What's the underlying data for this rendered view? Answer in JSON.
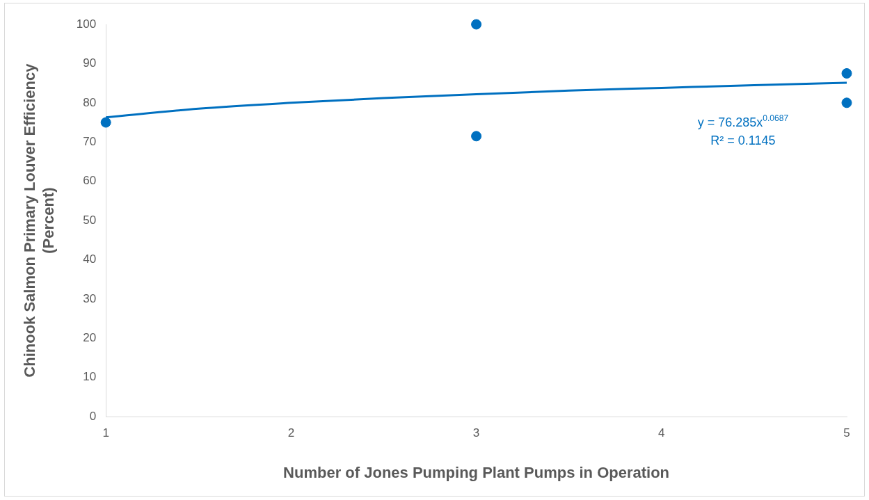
{
  "chart_data": {
    "type": "scatter",
    "xlabel": "Number of Jones Pumping Plant Pumps in Operation",
    "ylabel": "Chinook Salmon Primary Louver Efficiency (Percent)",
    "series": [
      {
        "type": "scatter",
        "color": "#0070c0",
        "x": [
          1,
          3,
          3,
          5,
          5
        ],
        "values": [
          75,
          100,
          71.5,
          87.5,
          80
        ]
      },
      {
        "type": "line",
        "color": "#0070c0",
        "marker": "none",
        "x": [
          1,
          1.5,
          2,
          2.5,
          3,
          3.5,
          4,
          4.5,
          5
        ],
        "values": [
          76.3,
          78.5,
          80,
          81.2,
          82.2,
          83.1,
          83.8,
          84.5,
          85.1
        ]
      }
    ],
    "annotations": [
      "y = 76.285x$^{0.0687}$",
      "R² = 0.1145"
    ],
    "xlim": [
      1,
      5
    ],
    "xticks": [
      1,
      2,
      3,
      4,
      5
    ],
    "ylim": [
      0,
      100
    ],
    "yticks": [
      0,
      10,
      20,
      30,
      40,
      50,
      60,
      70,
      80,
      90,
      100
    ],
    "grid": false,
    "legend": false,
    "marker": "circle"
  }
}
